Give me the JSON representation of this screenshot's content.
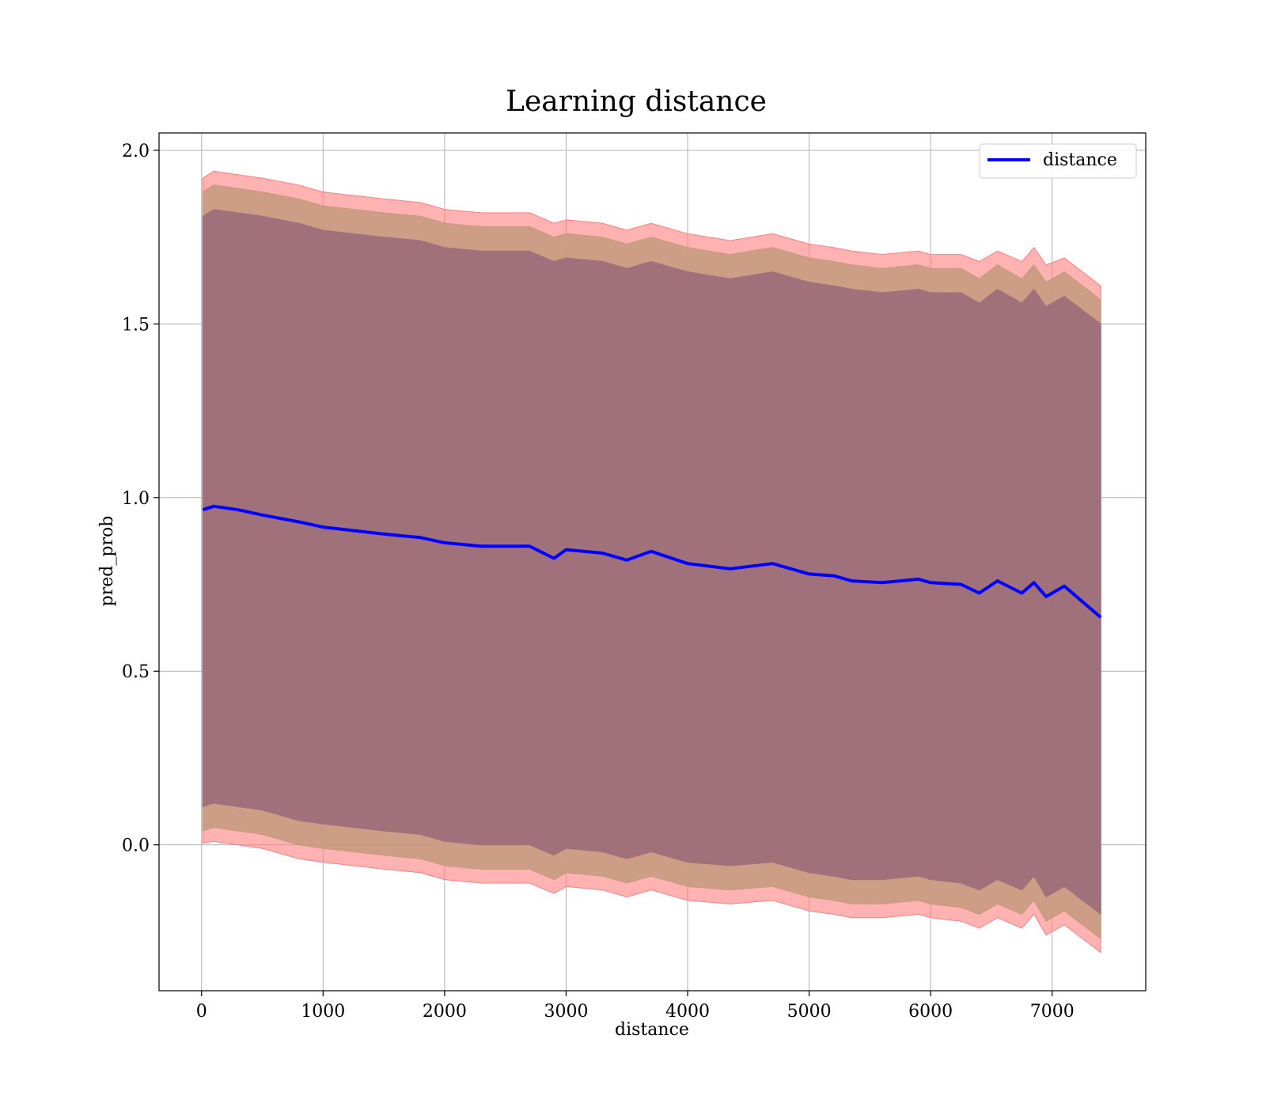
{
  "chart_data": {
    "type": "line",
    "title": "Learning distance",
    "xlabel": "distance",
    "ylabel": "pred_prob",
    "xlim": [
      -350,
      7770
    ],
    "ylim": [
      -0.42,
      2.05
    ],
    "xticks": [
      0,
      1000,
      2000,
      3000,
      4000,
      5000,
      6000,
      7000
    ],
    "xtick_labels": [
      "0",
      "1000",
      "2000",
      "3000",
      "4000",
      "5000",
      "6000",
      "7000"
    ],
    "yticks": [
      0.0,
      0.5,
      1.0,
      1.5,
      2.0
    ],
    "ytick_labels": [
      "0.0",
      "0.5",
      "1.0",
      "1.5",
      "2.0"
    ],
    "grid": true,
    "legend": {
      "position": "top-right",
      "entries": [
        "distance"
      ]
    },
    "colors": {
      "line": "#0000ff",
      "band_outer": "#ff7f7f",
      "band_middle": "#c49a7c",
      "band_inner": "#a0717a"
    },
    "x": [
      10,
      100,
      300,
      500,
      800,
      1000,
      1500,
      1800,
      2000,
      2300,
      2700,
      2900,
      3000,
      3300,
      3500,
      3700,
      4000,
      4350,
      4700,
      5000,
      5200,
      5350,
      5600,
      5900,
      6000,
      6250,
      6400,
      6550,
      6750,
      6850,
      6950,
      7100,
      7400
    ],
    "series": [
      {
        "name": "distance",
        "values": [
          0.965,
          0.975,
          0.965,
          0.95,
          0.93,
          0.915,
          0.895,
          0.885,
          0.87,
          0.86,
          0.86,
          0.825,
          0.85,
          0.84,
          0.82,
          0.845,
          0.81,
          0.795,
          0.81,
          0.78,
          0.775,
          0.76,
          0.755,
          0.765,
          0.755,
          0.75,
          0.725,
          0.76,
          0.725,
          0.755,
          0.715,
          0.745,
          0.655
        ]
      }
    ],
    "bands": [
      {
        "upper": [
          1.92,
          1.94,
          1.93,
          1.92,
          1.9,
          1.88,
          1.86,
          1.85,
          1.83,
          1.82,
          1.82,
          1.79,
          1.8,
          1.79,
          1.77,
          1.79,
          1.76,
          1.74,
          1.76,
          1.73,
          1.72,
          1.71,
          1.7,
          1.71,
          1.7,
          1.7,
          1.68,
          1.71,
          1.68,
          1.72,
          1.67,
          1.69,
          1.61
        ],
        "lower": [
          0.005,
          0.01,
          0.0,
          -0.01,
          -0.04,
          -0.05,
          -0.07,
          -0.08,
          -0.1,
          -0.11,
          -0.11,
          -0.14,
          -0.12,
          -0.13,
          -0.15,
          -0.13,
          -0.16,
          -0.17,
          -0.16,
          -0.19,
          -0.2,
          -0.21,
          -0.21,
          -0.2,
          -0.21,
          -0.22,
          -0.24,
          -0.21,
          -0.24,
          -0.2,
          -0.26,
          -0.23,
          -0.31
        ]
      },
      {
        "upper": [
          1.88,
          1.9,
          1.89,
          1.88,
          1.86,
          1.84,
          1.82,
          1.81,
          1.79,
          1.78,
          1.78,
          1.75,
          1.76,
          1.75,
          1.73,
          1.75,
          1.72,
          1.7,
          1.72,
          1.69,
          1.68,
          1.67,
          1.66,
          1.67,
          1.66,
          1.66,
          1.63,
          1.67,
          1.63,
          1.67,
          1.62,
          1.65,
          1.57
        ],
        "lower": [
          0.04,
          0.05,
          0.04,
          0.03,
          0.0,
          -0.01,
          -0.03,
          -0.04,
          -0.06,
          -0.07,
          -0.07,
          -0.1,
          -0.08,
          -0.09,
          -0.11,
          -0.09,
          -0.12,
          -0.13,
          -0.12,
          -0.15,
          -0.16,
          -0.17,
          -0.17,
          -0.16,
          -0.17,
          -0.18,
          -0.2,
          -0.17,
          -0.2,
          -0.16,
          -0.22,
          -0.19,
          -0.27
        ]
      },
      {
        "upper": [
          1.81,
          1.83,
          1.82,
          1.81,
          1.79,
          1.77,
          1.75,
          1.74,
          1.72,
          1.71,
          1.71,
          1.68,
          1.69,
          1.68,
          1.66,
          1.68,
          1.65,
          1.63,
          1.65,
          1.62,
          1.61,
          1.6,
          1.59,
          1.6,
          1.59,
          1.59,
          1.56,
          1.6,
          1.56,
          1.6,
          1.55,
          1.58,
          1.5
        ],
        "lower": [
          0.11,
          0.12,
          0.11,
          0.1,
          0.07,
          0.06,
          0.04,
          0.03,
          0.01,
          0.0,
          0.0,
          -0.03,
          -0.01,
          -0.02,
          -0.04,
          -0.02,
          -0.05,
          -0.06,
          -0.05,
          -0.08,
          -0.09,
          -0.1,
          -0.1,
          -0.09,
          -0.1,
          -0.11,
          -0.13,
          -0.1,
          -0.13,
          -0.09,
          -0.15,
          -0.12,
          -0.2
        ]
      }
    ]
  }
}
